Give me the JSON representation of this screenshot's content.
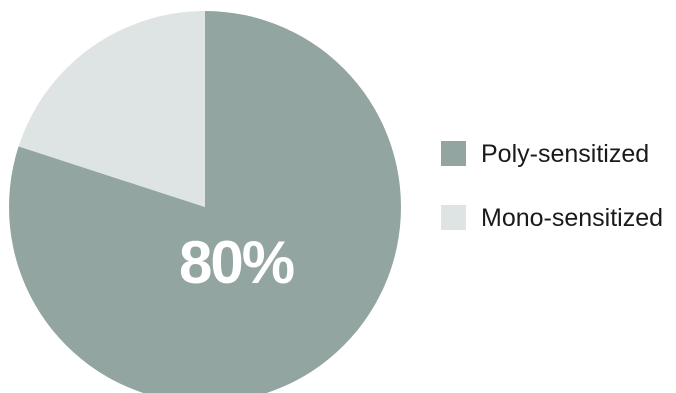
{
  "chart_data": {
    "type": "pie",
    "categories": [
      "Poly-sensitized",
      "Mono-sensitized"
    ],
    "values": [
      80,
      20
    ],
    "slice_labels": [
      "80%",
      ""
    ],
    "colors": [
      "#93a5a1",
      "#dee4e4"
    ],
    "legend_position": "right",
    "title": ""
  }
}
